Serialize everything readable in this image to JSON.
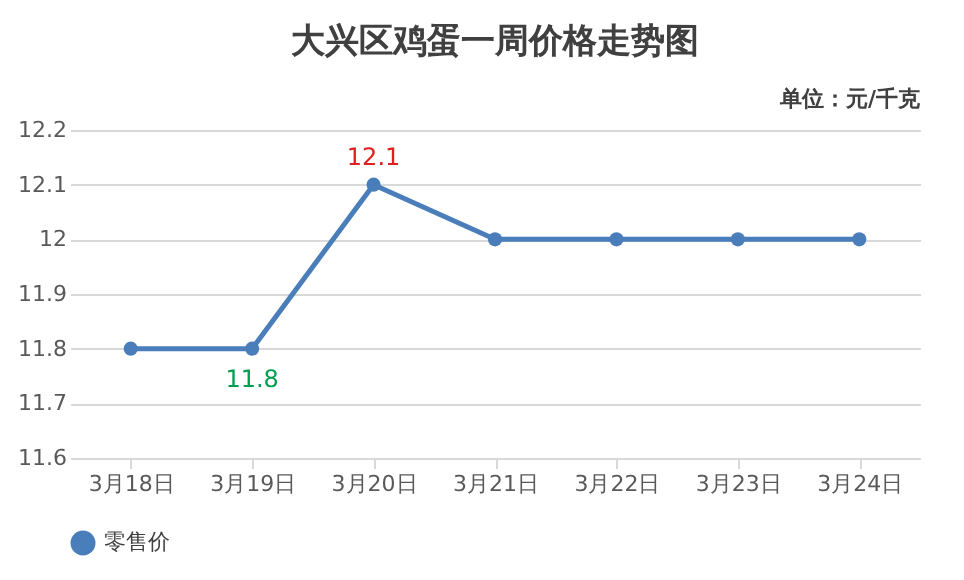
{
  "chart_data": {
    "type": "line",
    "title": "大兴区鸡蛋一周价格走势图",
    "annotations": [
      "单位：元/千克"
    ],
    "categories": [
      "3月18日",
      "3月19日",
      "3月20日",
      "3月21日",
      "3月22日",
      "3月23日",
      "3月24日"
    ],
    "series": [
      {
        "name": "零售价",
        "color": "#4a7ebb",
        "values": [
          11.8,
          11.8,
          12.1,
          12,
          12,
          12,
          12
        ],
        "value_labels": [
          null,
          "11.8",
          "12.1",
          null,
          null,
          null,
          null
        ]
      }
    ],
    "ylim": [
      11.6,
      12.2
    ],
    "yticks": [
      11.6,
      11.7,
      11.8,
      11.9,
      12,
      12.1,
      12.2
    ],
    "grid": "y",
    "legend": "bottom",
    "marker": "circle",
    "line_style": "solid"
  }
}
